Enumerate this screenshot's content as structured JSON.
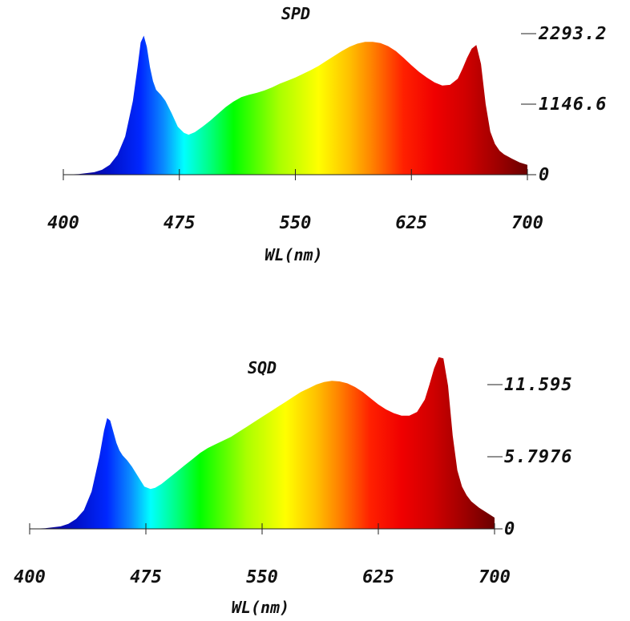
{
  "chart_data": [
    {
      "type": "area",
      "title": "SPD",
      "xlabel": "WL(nm)",
      "ylabel": "",
      "xlim": [
        400,
        700
      ],
      "ylim": [
        0,
        2293.2
      ],
      "xticks": [
        400,
        475,
        550,
        625,
        700
      ],
      "yticks": [
        "0",
        "1146.6",
        "2293.2"
      ],
      "fill": "wavelength-rainbow",
      "series": [
        {
          "x": [
            400,
            410,
            420,
            425,
            430,
            435,
            440,
            445,
            448,
            450,
            452,
            454,
            456,
            458,
            460,
            463,
            466,
            470,
            474,
            478,
            481,
            485,
            490,
            495,
            500,
            505,
            510,
            515,
            520,
            525,
            530,
            535,
            540,
            545,
            550,
            555,
            560,
            565,
            570,
            575,
            580,
            585,
            590,
            595,
            600,
            605,
            610,
            615,
            620,
            625,
            630,
            635,
            640,
            645,
            650,
            655,
            658,
            661,
            664,
            667,
            670,
            673,
            676,
            679,
            682,
            685,
            690,
            695,
            700
          ],
          "y": [
            0,
            10,
            40,
            80,
            160,
            320,
            620,
            1200,
            1750,
            2150,
            2260,
            2080,
            1750,
            1520,
            1380,
            1300,
            1200,
            1000,
            780,
            680,
            650,
            690,
            780,
            880,
            990,
            1100,
            1190,
            1260,
            1300,
            1330,
            1370,
            1420,
            1480,
            1530,
            1580,
            1640,
            1700,
            1770,
            1850,
            1930,
            2010,
            2080,
            2130,
            2160,
            2160,
            2140,
            2090,
            2010,
            1900,
            1780,
            1670,
            1580,
            1500,
            1450,
            1460,
            1560,
            1720,
            1900,
            2050,
            2110,
            1800,
            1150,
            700,
            500,
            390,
            330,
            260,
            200,
            160
          ]
        }
      ]
    },
    {
      "type": "area",
      "title": "SQD",
      "xlabel": "WL(nm)",
      "ylabel": "",
      "xlim": [
        400,
        700
      ],
      "ylim": [
        0,
        11.595
      ],
      "xticks": [
        400,
        475,
        550,
        625,
        700
      ],
      "yticks": [
        "0",
        "5.7976",
        "11.595"
      ],
      "fill": "wavelength-rainbow",
      "series": [
        {
          "x": [
            400,
            410,
            420,
            425,
            430,
            435,
            440,
            445,
            448,
            450,
            452,
            454,
            456,
            458,
            460,
            463,
            466,
            470,
            474,
            478,
            481,
            485,
            490,
            495,
            500,
            505,
            510,
            515,
            520,
            525,
            530,
            535,
            540,
            545,
            550,
            555,
            560,
            565,
            570,
            575,
            580,
            585,
            590,
            595,
            600,
            605,
            610,
            615,
            620,
            625,
            630,
            635,
            640,
            645,
            650,
            655,
            658,
            661,
            664,
            667,
            670,
            673,
            676,
            679,
            682,
            685,
            690,
            695,
            700
          ],
          "y": [
            0,
            0.05,
            0.2,
            0.4,
            0.8,
            1.5,
            3.0,
            5.8,
            7.9,
            8.9,
            8.7,
            7.8,
            6.9,
            6.3,
            5.9,
            5.5,
            5.0,
            4.2,
            3.4,
            3.2,
            3.3,
            3.6,
            4.1,
            4.6,
            5.1,
            5.6,
            6.1,
            6.5,
            6.8,
            7.1,
            7.4,
            7.8,
            8.2,
            8.6,
            9.0,
            9.4,
            9.8,
            10.2,
            10.6,
            11.0,
            11.3,
            11.6,
            11.8,
            11.9,
            11.85,
            11.7,
            11.4,
            11.0,
            10.5,
            10.0,
            9.6,
            9.3,
            9.1,
            9.1,
            9.4,
            10.4,
            11.6,
            12.9,
            13.8,
            13.7,
            11.5,
            7.5,
            4.7,
            3.4,
            2.7,
            2.2,
            1.7,
            1.3,
            0.9
          ]
        }
      ]
    }
  ]
}
